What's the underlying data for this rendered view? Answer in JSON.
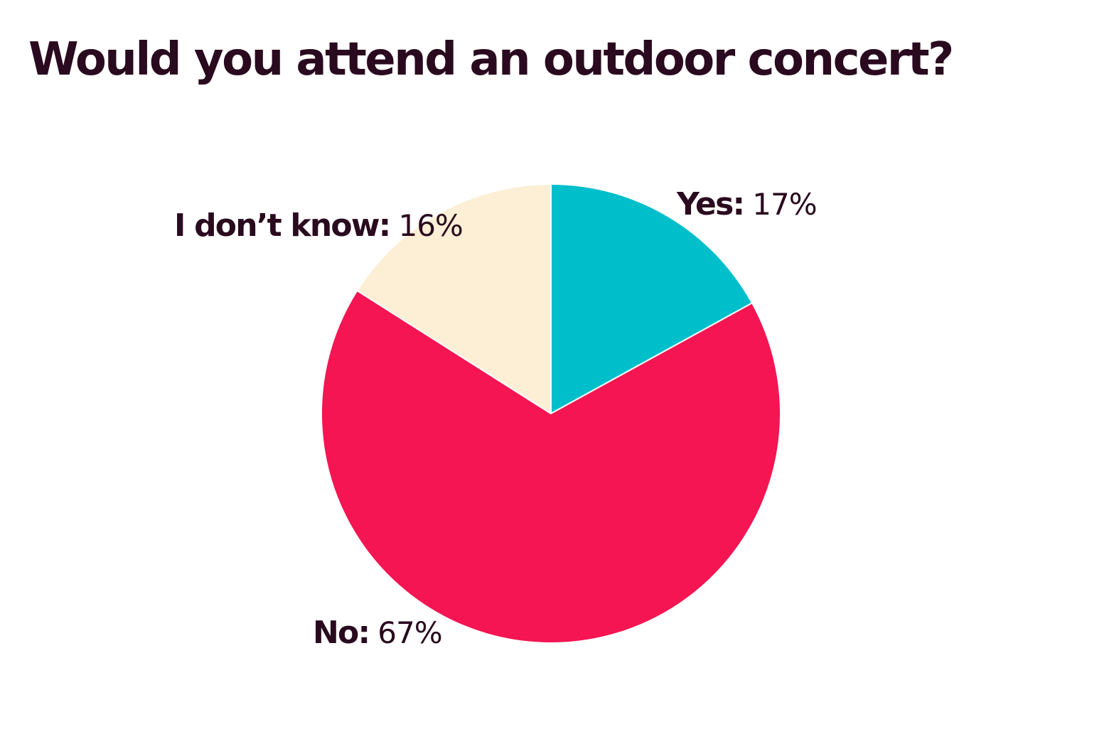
{
  "chart_data": {
    "type": "pie",
    "title": "Would you attend an outdoor concert?",
    "slices": [
      {
        "label": "Yes:",
        "value": 17,
        "value_label": "17%",
        "color": "#00bfcb"
      },
      {
        "label": "No:",
        "value": 67,
        "value_label": "67%",
        "color": "#f41552"
      },
      {
        "label": "I don’t know:",
        "value": 16,
        "value_label": "16%",
        "color": "#fcefd6"
      }
    ],
    "start_angle": "12 o'clock",
    "direction": "clockwise",
    "legend": "none (labels placed beside slices)"
  }
}
